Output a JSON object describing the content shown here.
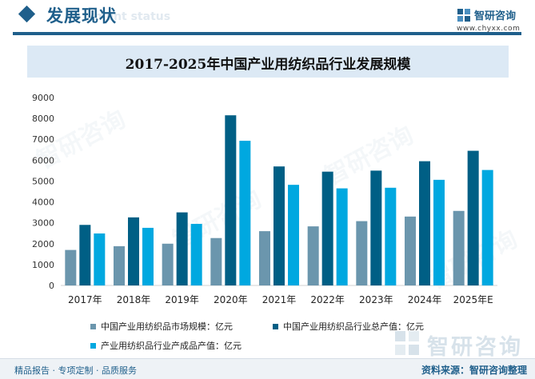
{
  "header": {
    "section_title": "发展现状",
    "section_subtitle": "ment status",
    "logo_name": "智研咨询",
    "logo_url": "www.chyxx.com"
  },
  "colors": {
    "brand": "#1f5f8b",
    "series": [
      "#6b96ad",
      "#005f85",
      "#00a8e0"
    ]
  },
  "chart_data": {
    "type": "bar",
    "title": "2017-2025年中国产业用纺织品行业发展规模",
    "categories": [
      "2017年",
      "2018年",
      "2019年",
      "2020年",
      "2021年",
      "2022年",
      "2023年",
      "2024年",
      "2025年E"
    ],
    "series": [
      {
        "name": "中国产业用纺织品市场规模：亿元",
        "values": [
          1700,
          1880,
          2000,
          2270,
          2600,
          2830,
          3080,
          3300,
          3570
        ]
      },
      {
        "name": "中国产业用纺织品行业总产值：亿元",
        "values": [
          2900,
          3260,
          3500,
          8150,
          5700,
          5450,
          5500,
          5950,
          6450
        ]
      },
      {
        "name": "产业用纺织品行业产成品产值：亿元",
        "values": [
          2490,
          2760,
          2950,
          6930,
          4820,
          4650,
          4680,
          5060,
          5530
        ]
      }
    ],
    "ylim": [
      0,
      9000
    ],
    "yticks": [
      0,
      1000,
      2000,
      3000,
      4000,
      5000,
      6000,
      7000,
      8000,
      9000
    ],
    "grid": false,
    "legend": "bottom"
  },
  "footer": {
    "left": "精品报告 · 专项定制 · 品质服务",
    "right": "资料来源：智研咨询整理"
  },
  "watermark": "智研咨询"
}
